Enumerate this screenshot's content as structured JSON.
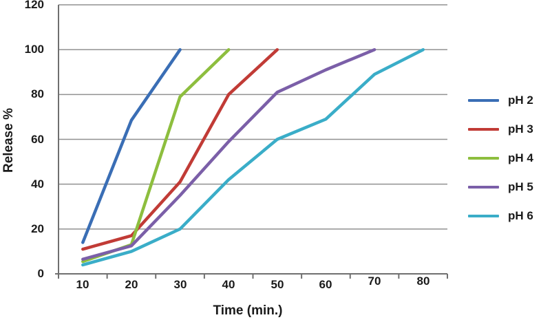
{
  "chart_data": {
    "type": "line",
    "title": "",
    "xlabel": "Time (min.)",
    "ylabel": "Release %",
    "x": [
      10,
      20,
      30,
      40,
      50,
      60,
      70,
      80
    ],
    "x_tick_labels": [
      "10",
      "20",
      "30",
      "40",
      "50",
      "60",
      "70",
      "80"
    ],
    "y_tick_labels_top_to_bottom": [
      "120",
      "100",
      "80",
      "60",
      "40",
      "20",
      "0"
    ],
    "ylim": [
      0,
      120
    ],
    "y_gridline_step": 20,
    "grid": "horizontal-only",
    "legend_position": "right-outside",
    "series": [
      {
        "name": "pH 2",
        "color": "#3a6eb5",
        "values": [
          14,
          68.5,
          100
        ]
      },
      {
        "name": "pH 3",
        "color": "#c13b36",
        "values": [
          11,
          17,
          41,
          80,
          100
        ]
      },
      {
        "name": "pH 4",
        "color": "#8dbe3e",
        "values": [
          5.5,
          13,
          79,
          100
        ]
      },
      {
        "name": "pH 5",
        "color": "#7b5fa8",
        "values": [
          6.5,
          12.5,
          35,
          59,
          81,
          91,
          100
        ]
      },
      {
        "name": "pH 6",
        "color": "#3aadc8",
        "values": [
          4,
          10,
          20,
          42,
          60,
          69,
          89,
          100
        ]
      }
    ],
    "colors": {
      "axis": "#6f6f6f",
      "gridline": "#909090",
      "text": "#1a1a1a",
      "background": "#ffffff"
    }
  }
}
